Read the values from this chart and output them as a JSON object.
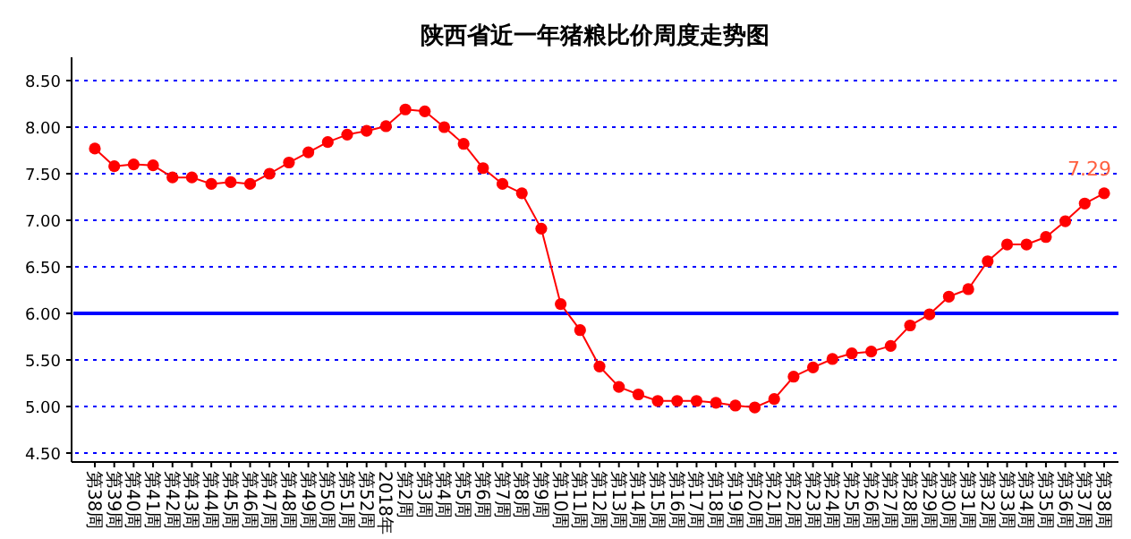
{
  "chart_data": {
    "type": "line",
    "title": "陕西省近一年猪粮比价周度走势图",
    "categories": [
      "第38周",
      "第39周",
      "第40周",
      "第41周",
      "第42周",
      "第43周",
      "第44周",
      "第45周",
      "第46周",
      "第47周",
      "第48周",
      "第49周",
      "第50周",
      "第51周",
      "第52周",
      "2018年",
      "第2周",
      "第3周",
      "第4周",
      "第5周",
      "第6周",
      "第7周",
      "第8周",
      "第9周",
      "第10周",
      "第11周",
      "第12周",
      "第13周",
      "第14周",
      "第15周",
      "第16周",
      "第17周",
      "第18周",
      "第19周",
      "第20周",
      "第21周",
      "第22周",
      "第23周",
      "第24周",
      "第25周",
      "第26周",
      "第27周",
      "第28周",
      "第29周",
      "第30周",
      "第31周",
      "第32周",
      "第33周",
      "第34周",
      "第35周",
      "第36周",
      "第37周",
      "第38周"
    ],
    "series": [
      {
        "color": "#ff0000",
        "values": [
          7.77,
          7.58,
          7.6,
          7.59,
          7.46,
          7.46,
          7.39,
          7.41,
          7.39,
          7.5,
          7.62,
          7.73,
          7.84,
          7.92,
          7.96,
          8.01,
          8.19,
          8.17,
          8.0,
          7.82,
          7.56,
          7.39,
          7.29,
          6.91,
          6.1,
          5.82,
          5.43,
          5.21,
          5.13,
          5.06,
          5.06,
          5.06,
          5.04,
          5.01,
          4.99,
          5.08,
          5.32,
          5.42,
          5.51,
          5.57,
          5.59,
          5.65,
          5.87,
          5.99,
          6.18,
          6.26,
          6.56,
          6.74,
          6.74,
          6.82,
          6.99,
          7.18,
          7.29
        ],
        "value_labels": [
          null,
          null,
          null,
          null,
          null,
          null,
          null,
          null,
          null,
          null,
          null,
          null,
          null,
          null,
          null,
          null,
          null,
          null,
          null,
          null,
          null,
          null,
          null,
          null,
          null,
          null,
          null,
          null,
          null,
          null,
          null,
          null,
          null,
          null,
          null,
          null,
          null,
          null,
          null,
          null,
          null,
          null,
          null,
          null,
          null,
          null,
          null,
          null,
          null,
          null,
          null,
          null,
          "7.29"
        ]
      }
    ],
    "ylim": [
      4.5,
      8.5
    ],
    "yticks": [
      {
        "value": 4.5,
        "label": "4.50"
      },
      {
        "value": 5,
        "label": "5.00"
      },
      {
        "value": 5.5,
        "label": "5.50"
      },
      {
        "value": 6,
        "label": "6.00"
      },
      {
        "value": 6.5,
        "label": "6.50"
      },
      {
        "value": 7,
        "label": "7.00"
      },
      {
        "value": 7.5,
        "label": "7.50"
      },
      {
        "value": 8,
        "label": "8.00"
      },
      {
        "value": 8.5,
        "label": "8.50"
      }
    ],
    "ref_lines": [
      {
        "axis": "y",
        "value": 6,
        "color": "#0000ff"
      }
    ],
    "grid": "y",
    "marker": "circle",
    "line_style": "solid"
  }
}
